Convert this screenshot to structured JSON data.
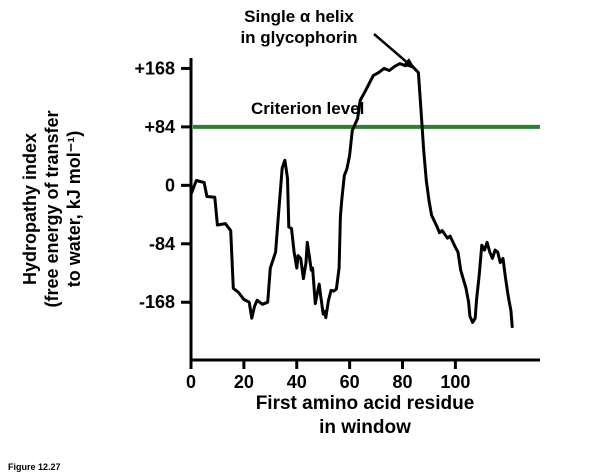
{
  "figure": {
    "caption": "Figure 12.27"
  },
  "chart_data": {
    "type": "line",
    "title": "",
    "annotation_lines": [
      "Single α helix",
      "in glycophorin"
    ],
    "criterion": {
      "label": "Criterion level",
      "value": 84,
      "color": "#2e7d32"
    },
    "ylabel": "Hydropathy index (free energy of transfer to water, kJ mol⁻¹)",
    "ylabel_lines": [
      "Hydropathy index",
      "(free energy of transfer",
      "to water, kJ mol⁻¹)"
    ],
    "xlabel": "First amino acid residue in window",
    "xlabel_lines": [
      "First amino acid residue",
      "in window"
    ],
    "x_ticks": [
      0,
      20,
      40,
      60,
      80,
      100
    ],
    "y_ticks": [
      168,
      84,
      0,
      -84,
      -168
    ],
    "y_tick_labels": [
      "+168",
      "+84",
      "0",
      "-84",
      "-168"
    ],
    "xlim": [
      0,
      132
    ],
    "ylim": [
      -251,
      183
    ],
    "grid": false,
    "legend": "none",
    "line_color": "#000000",
    "axis_color": "#000000",
    "series": [
      {
        "name": "Hydropathy index of glycophorin",
        "points": [
          [
            0,
            -13
          ],
          [
            2,
            7
          ],
          [
            5,
            4
          ],
          [
            6,
            -16
          ],
          [
            9,
            -17
          ],
          [
            10,
            -57
          ],
          [
            13,
            -55
          ],
          [
            15,
            -65
          ],
          [
            16,
            -148
          ],
          [
            18,
            -154
          ],
          [
            20,
            -164
          ],
          [
            22,
            -168
          ],
          [
            23,
            -191
          ],
          [
            24,
            -174
          ],
          [
            25,
            -165
          ],
          [
            27,
            -171
          ],
          [
            29,
            -168
          ],
          [
            30,
            -119
          ],
          [
            32,
            -96
          ],
          [
            33,
            -45
          ],
          [
            34.5,
            25
          ],
          [
            35.5,
            36
          ],
          [
            36.5,
            10
          ],
          [
            37,
            -60
          ],
          [
            38,
            -62
          ],
          [
            39,
            -96
          ],
          [
            40,
            -119
          ],
          [
            40.5,
            -101
          ],
          [
            41.5,
            -105
          ],
          [
            42.5,
            -134
          ],
          [
            43.5,
            -111
          ],
          [
            44,
            -82
          ],
          [
            44.5,
            -96
          ],
          [
            45.5,
            -122
          ],
          [
            46,
            -119
          ],
          [
            47,
            -170
          ],
          [
            47.5,
            -160
          ],
          [
            48.5,
            -142
          ],
          [
            49,
            -158
          ],
          [
            50,
            -185
          ],
          [
            50.5,
            -181
          ],
          [
            51,
            -190
          ],
          [
            52,
            -165
          ],
          [
            53,
            -151
          ],
          [
            54,
            -152
          ],
          [
            55,
            -149
          ],
          [
            56,
            -119
          ],
          [
            56.5,
            -45
          ],
          [
            57,
            -22
          ],
          [
            58,
            14
          ],
          [
            59,
            24
          ],
          [
            60,
            43
          ],
          [
            61,
            79
          ],
          [
            63,
            96
          ],
          [
            64,
            122
          ],
          [
            66,
            136
          ],
          [
            68,
            151
          ],
          [
            69,
            158
          ],
          [
            71,
            162
          ],
          [
            73,
            168
          ],
          [
            75,
            165
          ],
          [
            77,
            171
          ],
          [
            79,
            175
          ],
          [
            81,
            172
          ],
          [
            83,
            174
          ],
          [
            84.5,
            168
          ],
          [
            86,
            162
          ],
          [
            87,
            108
          ],
          [
            88,
            50
          ],
          [
            89,
            7
          ],
          [
            90,
            -22
          ],
          [
            91,
            -43
          ],
          [
            93,
            -59
          ],
          [
            94,
            -68
          ],
          [
            95,
            -65
          ],
          [
            97,
            -76
          ],
          [
            98,
            -73
          ],
          [
            100,
            -89
          ],
          [
            101,
            -96
          ],
          [
            102,
            -122
          ],
          [
            104,
            -148
          ],
          [
            105,
            -168
          ],
          [
            105.5,
            -188
          ],
          [
            106.5,
            -197
          ],
          [
            107.5,
            -191
          ],
          [
            108,
            -165
          ],
          [
            109,
            -129
          ],
          [
            110,
            -86
          ],
          [
            111,
            -93
          ],
          [
            112,
            -82
          ],
          [
            113,
            -96
          ],
          [
            114,
            -105
          ],
          [
            115,
            -93
          ],
          [
            116,
            -96
          ],
          [
            117,
            -111
          ],
          [
            118,
            -105
          ],
          [
            119,
            -134
          ],
          [
            120,
            -160
          ],
          [
            121,
            -180
          ],
          [
            121.5,
            -203
          ]
        ]
      }
    ]
  }
}
